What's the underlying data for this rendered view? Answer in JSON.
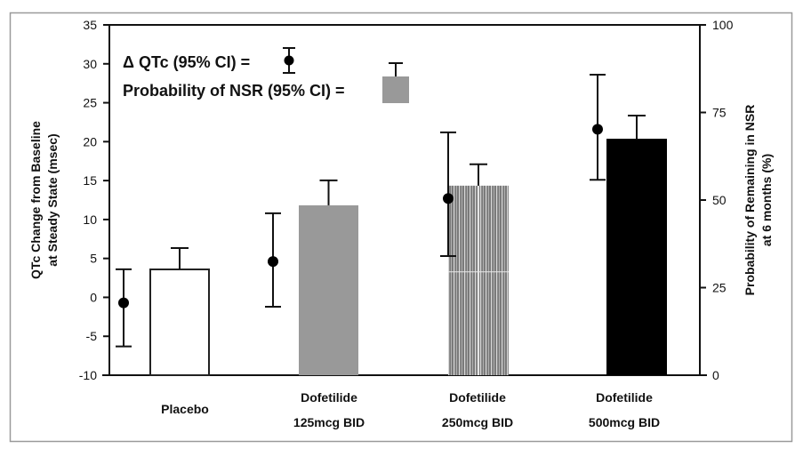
{
  "chart_data": {
    "type": "bar",
    "title": "",
    "categories": [
      {
        "line1": "Placebo",
        "line2": ""
      },
      {
        "line1": "Dofetilide",
        "line2": "125mcg BID"
      },
      {
        "line1": "Dofetilide",
        "line2": "250mcg BID"
      },
      {
        "line1": "Dofetilide",
        "line2": "500mcg BID"
      }
    ],
    "ylabel_left": [
      "QTc Change from Baseline",
      "at Steady State (msec)"
    ],
    "ylabel_right": [
      "Probability of Remaining in NSR",
      "at  6 months (%)"
    ],
    "ylim_left": [
      -10,
      35
    ],
    "yticks_left": [
      35,
      30,
      25,
      20,
      15,
      10,
      5,
      0,
      -5,
      -10
    ],
    "ylim_right": [
      0,
      100
    ],
    "yticks_right": [
      100,
      75,
      50,
      25,
      0
    ],
    "legend": {
      "placement": "top-left",
      "qtc_label": "Δ QTc (95% CI) =",
      "nsr_label": "Probability of NSR (95% CI) ="
    },
    "series": [
      {
        "name": "ΔQTc (95% CI)",
        "axis": "left",
        "kind": "point-errorbar",
        "values": [
          -0.7,
          4.6,
          12.7,
          21.6
        ],
        "ci_low": [
          -6.3,
          -1.2,
          5.3,
          15.1
        ],
        "ci_high": [
          3.6,
          10.8,
          21.2,
          28.6
        ]
      },
      {
        "name": "Probability of NSR (95% CI)",
        "axis": "right",
        "kind": "bar",
        "values": [
          30.2,
          48.5,
          54.1,
          67.5
        ],
        "ci_high": [
          36.3,
          55.6,
          60.2,
          74.1
        ],
        "fills": [
          "#ffffff",
          "#999999",
          "striped",
          "#000000"
        ]
      }
    ]
  }
}
